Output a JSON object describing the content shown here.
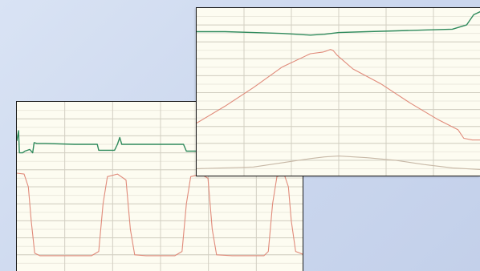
{
  "chart_data": [
    {
      "type": "line",
      "panel": "back",
      "xlim": [
        0,
        10
      ],
      "ylim": [
        0,
        10
      ],
      "grid": true,
      "colors": {
        "background": "#fdfcf1",
        "grid": "#d2cfc2",
        "minor_grid": "#ece9dd",
        "border": "#1a1a1a"
      },
      "series": [
        {
          "color": "#2f8a5c",
          "points": [
            [
              0.0,
              7.7
            ],
            [
              0.06,
              8.3
            ],
            [
              0.09,
              7.0
            ],
            [
              0.2,
              7.0
            ],
            [
              0.28,
              7.1
            ],
            [
              0.45,
              7.2
            ],
            [
              0.55,
              7.0
            ],
            [
              0.6,
              7.6
            ],
            [
              0.7,
              7.55
            ],
            [
              1.0,
              7.55
            ],
            [
              2.0,
              7.5
            ],
            [
              2.8,
              7.5
            ],
            [
              2.85,
              7.15
            ],
            [
              3.4,
              7.15
            ],
            [
              3.5,
              7.5
            ],
            [
              3.58,
              7.9
            ],
            [
              3.65,
              7.5
            ],
            [
              4.0,
              7.5
            ],
            [
              5.0,
              7.5
            ],
            [
              5.8,
              7.5
            ],
            [
              5.9,
              7.1
            ],
            [
              6.6,
              7.1
            ],
            [
              7.0,
              7.2
            ],
            [
              10.0,
              7.2
            ]
          ]
        },
        {
          "color": "#e08a7a",
          "points": [
            [
              0.0,
              5.8
            ],
            [
              0.25,
              5.75
            ],
            [
              0.4,
              5.0
            ],
            [
              0.5,
              3.0
            ],
            [
              0.62,
              1.1
            ],
            [
              0.8,
              0.95
            ],
            [
              1.6,
              0.95
            ],
            [
              2.6,
              0.95
            ],
            [
              2.85,
              1.2
            ],
            [
              3.0,
              4.0
            ],
            [
              3.15,
              5.6
            ],
            [
              3.5,
              5.75
            ],
            [
              3.8,
              5.4
            ],
            [
              3.95,
              2.5
            ],
            [
              4.1,
              1.0
            ],
            [
              4.5,
              0.95
            ],
            [
              5.5,
              0.95
            ],
            [
              5.75,
              1.2
            ],
            [
              5.9,
              4.0
            ],
            [
              6.05,
              5.6
            ],
            [
              6.4,
              5.75
            ],
            [
              6.65,
              5.5
            ],
            [
              6.8,
              2.5
            ],
            [
              6.95,
              1.0
            ],
            [
              7.5,
              0.95
            ],
            [
              8.6,
              0.95
            ],
            [
              8.75,
              1.2
            ],
            [
              8.9,
              4.0
            ],
            [
              9.05,
              5.6
            ],
            [
              9.3,
              5.75
            ],
            [
              9.45,
              5.0
            ],
            [
              9.55,
              3.0
            ],
            [
              9.7,
              1.2
            ],
            [
              10.0,
              1.0
            ]
          ]
        }
      ]
    },
    {
      "type": "line",
      "panel": "front",
      "xlim": [
        0,
        10
      ],
      "ylim": [
        0,
        10
      ],
      "grid": true,
      "colors": {
        "background": "#fdfcf1",
        "grid": "#d2cfc2",
        "minor_grid": "#ece9dd",
        "border": "#1a1a1a"
      },
      "series": [
        {
          "color": "#2f8a5c",
          "points": [
            [
              0.0,
              8.6
            ],
            [
              1.0,
              8.6
            ],
            [
              2.0,
              8.55
            ],
            [
              3.0,
              8.5
            ],
            [
              3.5,
              8.45
            ],
            [
              4.0,
              8.4
            ],
            [
              4.5,
              8.45
            ],
            [
              5.0,
              8.55
            ],
            [
              6.0,
              8.6
            ],
            [
              7.0,
              8.65
            ],
            [
              8.0,
              8.7
            ],
            [
              9.0,
              8.75
            ],
            [
              9.5,
              9.0
            ],
            [
              9.75,
              9.6
            ],
            [
              10.0,
              9.8
            ]
          ]
        },
        {
          "color": "#e08a7a",
          "points": [
            [
              0.0,
              3.2
            ],
            [
              1.0,
              4.2
            ],
            [
              2.0,
              5.3
            ],
            [
              3.0,
              6.5
            ],
            [
              4.0,
              7.3
            ],
            [
              4.45,
              7.4
            ],
            [
              4.55,
              7.45
            ],
            [
              4.7,
              7.55
            ],
            [
              4.8,
              7.5
            ],
            [
              4.95,
              7.2
            ],
            [
              5.5,
              6.4
            ],
            [
              6.5,
              5.5
            ],
            [
              7.5,
              4.4
            ],
            [
              8.5,
              3.4
            ],
            [
              9.2,
              2.8
            ],
            [
              9.4,
              2.3
            ],
            [
              9.7,
              2.2
            ],
            [
              10.0,
              2.2
            ]
          ]
        },
        {
          "color": "#c7b8a6",
          "points": [
            [
              0.0,
              0.5
            ],
            [
              2.0,
              0.6
            ],
            [
              3.0,
              0.85
            ],
            [
              4.0,
              1.1
            ],
            [
              4.5,
              1.2
            ],
            [
              5.0,
              1.25
            ],
            [
              6.0,
              1.15
            ],
            [
              7.0,
              1.0
            ],
            [
              8.0,
              0.75
            ],
            [
              9.0,
              0.55
            ],
            [
              10.0,
              0.45
            ]
          ]
        }
      ]
    }
  ]
}
